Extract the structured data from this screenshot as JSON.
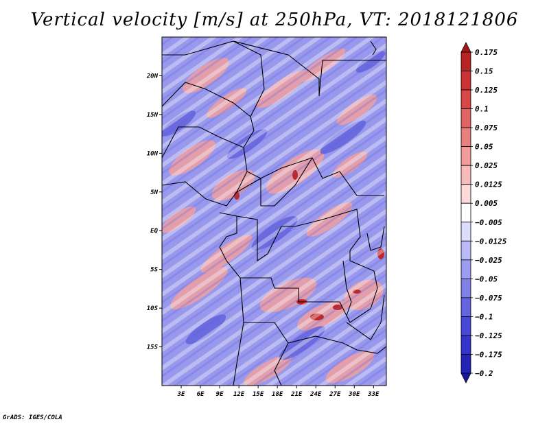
{
  "title": "Vertical velocity [m/s] at 250hPa, VT: 2018121806",
  "map": {
    "lat_labels": [
      "20N",
      "15N",
      "10N",
      "5N",
      "EQ",
      "5S",
      "10S",
      "15S"
    ],
    "lat_values": [
      20,
      15,
      10,
      5,
      0,
      -5,
      -10,
      -15
    ],
    "lon_labels": [
      "3E",
      "6E",
      "9E",
      "12E",
      "15E",
      "18E",
      "21E",
      "24E",
      "27E",
      "30E",
      "33E"
    ],
    "lon_values": [
      3,
      6,
      9,
      12,
      15,
      18,
      21,
      24,
      27,
      30,
      33
    ],
    "lat_range": [
      -20,
      25
    ],
    "lon_range": [
      0,
      35
    ]
  },
  "colorbar": {
    "labels": [
      "0.175",
      "0.15",
      "0.125",
      "0.1",
      "0.075",
      "0.05",
      "0.025",
      "0.0125",
      "0.005",
      "−0.005",
      "−0.0125",
      "−0.025",
      "−0.05",
      "−0.075",
      "−0.1",
      "−0.125",
      "−0.175",
      "−0.2"
    ],
    "colors": [
      "#a01818",
      "#b82424",
      "#cc3434",
      "#d84848",
      "#e06464",
      "#e88080",
      "#f09c9c",
      "#f6baba",
      "#fcdada",
      "#ffffff",
      "#dcdcfc",
      "#babaf6",
      "#9c9cf0",
      "#8080e8",
      "#6464e0",
      "#4848d8",
      "#3434cc",
      "#2424b8",
      "#18189a"
    ]
  },
  "credit": "GrADS: IGES/COLA"
}
